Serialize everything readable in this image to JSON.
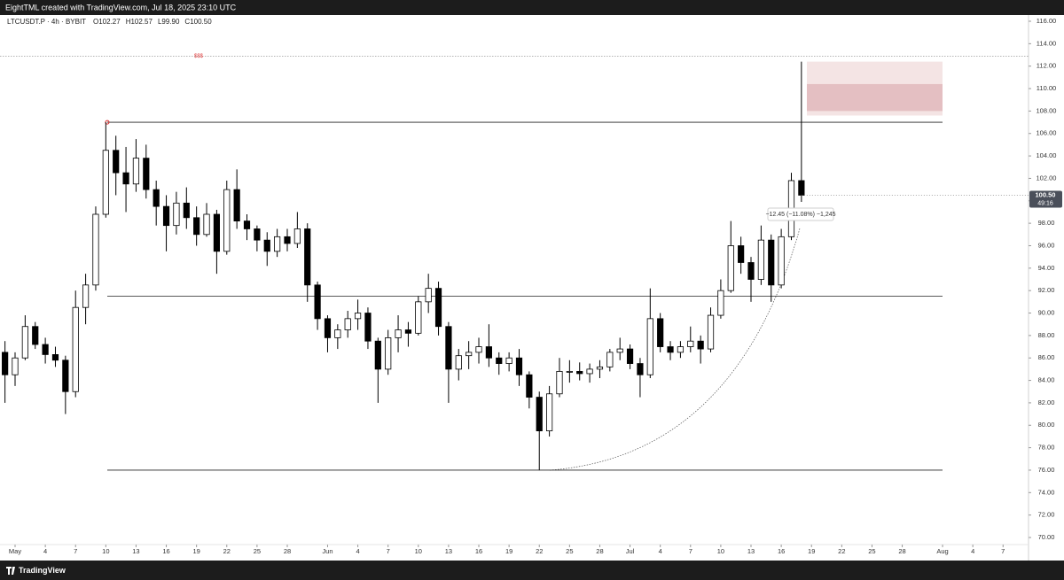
{
  "chart_data": {
    "type": "candlestick",
    "header": "EightTML created with TradingView.com, Jul 18, 2025 23:10 UTC",
    "symbol": "LTCUSDT.P · 4h · BYBIT",
    "ohlc_legend": [
      "O102.27",
      "H102.57",
      "L99.90",
      "C100.50"
    ],
    "footer": "TradingView",
    "up_color": "#ffffff",
    "down_color": "#000000",
    "grid": false,
    "x": [
      "2025-04-30",
      "2025-05-01",
      "2025-05-02",
      "2025-05-03",
      "2025-05-04",
      "2025-05-05",
      "2025-05-06",
      "2025-05-07",
      "2025-05-08",
      "2025-05-09",
      "2025-05-10",
      "2025-05-11",
      "2025-05-12",
      "2025-05-13",
      "2025-05-14",
      "2025-05-15",
      "2025-05-16",
      "2025-05-17",
      "2025-05-18",
      "2025-05-19",
      "2025-05-20",
      "2025-05-21",
      "2025-05-22",
      "2025-05-23",
      "2025-05-24",
      "2025-05-25",
      "2025-05-26",
      "2025-05-27",
      "2025-05-28",
      "2025-05-29",
      "2025-05-30",
      "2025-05-31",
      "2025-06-01",
      "2025-06-02",
      "2025-06-03",
      "2025-06-04",
      "2025-06-05",
      "2025-06-06",
      "2025-06-07",
      "2025-06-08",
      "2025-06-09",
      "2025-06-10",
      "2025-06-11",
      "2025-06-12",
      "2025-06-13",
      "2025-06-14",
      "2025-06-15",
      "2025-06-16",
      "2025-06-17",
      "2025-06-18",
      "2025-06-19",
      "2025-06-20",
      "2025-06-21",
      "2025-06-22",
      "2025-06-23",
      "2025-06-24",
      "2025-06-25",
      "2025-06-26",
      "2025-06-27",
      "2025-06-28",
      "2025-06-29",
      "2025-06-30",
      "2025-07-01",
      "2025-07-02",
      "2025-07-03",
      "2025-07-04",
      "2025-07-05",
      "2025-07-06",
      "2025-07-07",
      "2025-07-08",
      "2025-07-09",
      "2025-07-10",
      "2025-07-11",
      "2025-07-12",
      "2025-07-13",
      "2025-07-14",
      "2025-07-15",
      "2025-07-16",
      "2025-07-17",
      "2025-07-18"
    ],
    "open": [
      86.5,
      84.5,
      86.0,
      88.8,
      87.2,
      86.3,
      85.8,
      83.0,
      90.5,
      92.5,
      98.8,
      104.5,
      102.5,
      101.5,
      103.8,
      101.0,
      99.5,
      97.8,
      99.8,
      98.5,
      97.0,
      98.8,
      95.5,
      101.0,
      98.2,
      97.5,
      96.5,
      95.5,
      96.8,
      96.2,
      97.5,
      92.5,
      89.5,
      87.8,
      88.5,
      89.5,
      90.0,
      87.5,
      85.0,
      87.8,
      88.5,
      88.2,
      91.0,
      92.2,
      88.8,
      85.0,
      86.2,
      86.5,
      87.0,
      86.0,
      85.5,
      86.0,
      84.5,
      82.5,
      79.5,
      82.8,
      84.8,
      84.8,
      84.6,
      85.0,
      85.2,
      86.5,
      86.8,
      85.5,
      84.5,
      89.5,
      87.0,
      86.5,
      87.0,
      87.5,
      86.8,
      89.8,
      92.0,
      96.0,
      94.5,
      93.0,
      96.5,
      92.5,
      96.8,
      101.8
    ],
    "high": [
      87.5,
      86.5,
      89.8,
      89.2,
      87.8,
      87.0,
      86.2,
      92.0,
      93.5,
      99.5,
      107.0,
      105.8,
      104.8,
      105.5,
      105.0,
      101.8,
      100.5,
      100.8,
      101.2,
      99.5,
      99.8,
      99.2,
      101.8,
      102.8,
      98.8,
      97.8,
      97.2,
      97.5,
      97.5,
      99.0,
      98.0,
      92.8,
      89.8,
      89.0,
      90.2,
      91.2,
      90.5,
      87.8,
      88.5,
      89.8,
      89.2,
      91.5,
      93.5,
      92.8,
      89.2,
      86.8,
      87.5,
      87.8,
      89.0,
      86.5,
      86.5,
      86.8,
      84.8,
      83.0,
      83.5,
      86.0,
      85.8,
      85.6,
      85.5,
      85.8,
      86.8,
      87.8,
      87.2,
      86.0,
      92.2,
      90.0,
      87.5,
      87.5,
      88.8,
      88.0,
      90.5,
      93.0,
      98.2,
      96.8,
      95.0,
      97.8,
      97.0,
      97.5,
      102.5,
      112.4
    ],
    "low": [
      82.0,
      83.5,
      85.8,
      86.8,
      85.5,
      85.2,
      81.0,
      82.5,
      89.0,
      92.0,
      98.5,
      100.5,
      99.0,
      100.8,
      100.2,
      97.8,
      95.5,
      97.0,
      97.5,
      96.0,
      96.8,
      93.5,
      95.2,
      97.5,
      96.5,
      95.5,
      94.2,
      95.0,
      95.5,
      95.8,
      91.0,
      88.5,
      86.5,
      86.8,
      87.8,
      88.5,
      86.8,
      82.0,
      84.5,
      86.5,
      87.0,
      88.0,
      90.0,
      88.0,
      82.0,
      84.0,
      85.0,
      85.5,
      85.2,
      84.5,
      84.8,
      83.5,
      81.5,
      76.0,
      79.0,
      82.5,
      83.8,
      84.0,
      83.8,
      84.2,
      84.8,
      85.8,
      85.0,
      82.5,
      84.2,
      86.5,
      85.8,
      86.0,
      86.5,
      85.5,
      86.5,
      89.5,
      91.8,
      93.5,
      91.0,
      92.5,
      91.0,
      92.2,
      96.5,
      99.9
    ],
    "close": [
      84.5,
      86.0,
      88.8,
      87.2,
      86.3,
      85.8,
      83.0,
      90.5,
      92.5,
      98.8,
      104.5,
      102.5,
      101.5,
      103.8,
      101.0,
      99.5,
      97.8,
      99.8,
      98.5,
      97.0,
      98.8,
      95.5,
      101.0,
      98.2,
      97.5,
      96.5,
      95.5,
      96.8,
      96.2,
      97.5,
      92.5,
      89.5,
      87.8,
      88.5,
      89.5,
      90.0,
      87.5,
      85.0,
      87.8,
      88.5,
      88.2,
      91.0,
      92.2,
      88.8,
      85.0,
      86.2,
      86.5,
      87.0,
      86.0,
      85.5,
      86.0,
      84.5,
      82.5,
      79.5,
      82.8,
      84.8,
      84.8,
      84.6,
      85.0,
      85.2,
      86.5,
      86.8,
      85.5,
      84.5,
      89.5,
      87.0,
      86.5,
      87.0,
      87.5,
      86.8,
      89.8,
      92.0,
      96.0,
      94.5,
      93.0,
      96.5,
      92.5,
      96.8,
      101.8,
      100.5
    ],
    "ylim": [
      70,
      116.5
    ],
    "yticks": [
      {
        "value": 70,
        "label": "70.00"
      },
      {
        "value": 72,
        "label": "72.00"
      },
      {
        "value": 74,
        "label": "74.00"
      },
      {
        "value": 76,
        "label": "76.00"
      },
      {
        "value": 78,
        "label": "78.00"
      },
      {
        "value": 80,
        "label": "80.00"
      },
      {
        "value": 82,
        "label": "82.00"
      },
      {
        "value": 84,
        "label": "84.00"
      },
      {
        "value": 86,
        "label": "86.00"
      },
      {
        "value": 88,
        "label": "88.00"
      },
      {
        "value": 90,
        "label": "90.00"
      },
      {
        "value": 92,
        "label": "92.00"
      },
      {
        "value": 94,
        "label": "94.00"
      },
      {
        "value": 96,
        "label": "96.00"
      },
      {
        "value": 98,
        "label": "98.00"
      },
      {
        "value": 100,
        "label": "100.00"
      },
      {
        "value": 102,
        "label": "102.00"
      },
      {
        "value": 104,
        "label": "104.00"
      },
      {
        "value": 106,
        "label": "106.00"
      },
      {
        "value": 108,
        "label": "108.00"
      },
      {
        "value": 110,
        "label": "110.00"
      },
      {
        "value": 112,
        "label": "112.00"
      },
      {
        "value": 114,
        "label": "114.00"
      },
      {
        "value": 116,
        "label": "116.00"
      }
    ],
    "xticks": [
      {
        "value": "2025-05-01",
        "label": "May"
      },
      {
        "value": "2025-05-04",
        "label": "4"
      },
      {
        "value": "2025-05-07",
        "label": "7"
      },
      {
        "value": "2025-05-10",
        "label": "10"
      },
      {
        "value": "2025-05-13",
        "label": "13"
      },
      {
        "value": "2025-05-16",
        "label": "16"
      },
      {
        "value": "2025-05-19",
        "label": "19"
      },
      {
        "value": "2025-05-22",
        "label": "22"
      },
      {
        "value": "2025-05-25",
        "label": "25"
      },
      {
        "value": "2025-05-28",
        "label": "28"
      },
      {
        "value": "2025-06-01",
        "label": "Jun"
      },
      {
        "value": "2025-06-04",
        "label": "4"
      },
      {
        "value": "2025-06-07",
        "label": "7"
      },
      {
        "value": "2025-06-10",
        "label": "10"
      },
      {
        "value": "2025-06-13",
        "label": "13"
      },
      {
        "value": "2025-06-16",
        "label": "16"
      },
      {
        "value": "2025-06-19",
        "label": "19"
      },
      {
        "value": "2025-06-22",
        "label": "22"
      },
      {
        "value": "2025-06-25",
        "label": "25"
      },
      {
        "value": "2025-06-28",
        "label": "28"
      },
      {
        "value": "2025-07-01",
        "label": "Jul"
      },
      {
        "value": "2025-07-04",
        "label": "4"
      },
      {
        "value": "2025-07-07",
        "label": "7"
      },
      {
        "value": "2025-07-10",
        "label": "10"
      },
      {
        "value": "2025-07-13",
        "label": "13"
      },
      {
        "value": "2025-07-16",
        "label": "16"
      },
      {
        "value": "2025-07-19",
        "label": "19"
      },
      {
        "value": "2025-07-22",
        "label": "22"
      },
      {
        "value": "2025-07-25",
        "label": "25"
      },
      {
        "value": "2025-07-28",
        "label": "28"
      },
      {
        "value": "2025-08-01",
        "label": "Aug"
      },
      {
        "value": "2025-08-04",
        "label": "4"
      },
      {
        "value": "2025-08-07",
        "label": "7"
      }
    ],
    "levels": [
      107,
      91.5,
      76
    ],
    "liquidity_line": {
      "value": 112.9,
      "label": "$$$"
    },
    "zones": [
      {
        "low": 107.6,
        "high": 112.4
      },
      {
        "low": 108.0,
        "high": 110.4
      }
    ],
    "measure_label": "−12.45 (−11.08%) −1,245",
    "last_price": {
      "value": 100.5,
      "label": "100.50"
    },
    "countdown": "49:16"
  }
}
